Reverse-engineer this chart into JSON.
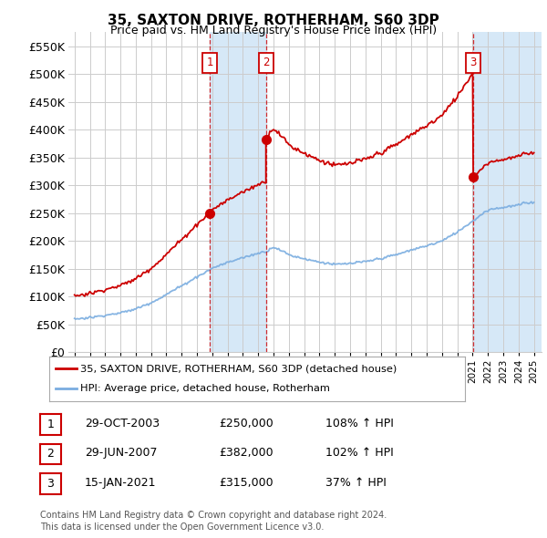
{
  "title": "35, SAXTON DRIVE, ROTHERHAM, S60 3DP",
  "subtitle": "Price paid vs. HM Land Registry's House Price Index (HPI)",
  "red_line_label": "35, SAXTON DRIVE, ROTHERHAM, S60 3DP (detached house)",
  "blue_line_label": "HPI: Average price, detached house, Rotherham",
  "transactions": [
    {
      "num": 1,
      "date": "29-OCT-2003",
      "price": 250000,
      "pct": "108%",
      "dir": "↑"
    },
    {
      "num": 2,
      "date": "29-JUN-2007",
      "price": 382000,
      "pct": "102%",
      "dir": "↑"
    },
    {
      "num": 3,
      "date": "15-JAN-2021",
      "price": 315000,
      "pct": "37%",
      "dir": "↑"
    }
  ],
  "footer1": "Contains HM Land Registry data © Crown copyright and database right 2024.",
  "footer2": "This data is licensed under the Open Government Licence v3.0.",
  "ylim": [
    0,
    575000
  ],
  "yticks": [
    0,
    50000,
    100000,
    150000,
    200000,
    250000,
    300000,
    350000,
    400000,
    450000,
    500000,
    550000
  ],
  "background": "#ffffff",
  "plot_bg": "#ffffff",
  "grid_color": "#cccccc",
  "red_color": "#cc0000",
  "blue_color": "#7aade0",
  "shade_color": "#d6e8f7",
  "vline_color": "#cc0000",
  "sale_dates_year": [
    2003.833,
    2007.5,
    2021.04
  ],
  "sale_prices": [
    250000,
    382000,
    315000
  ],
  "hpi_knots_x": [
    1995,
    1996,
    1997,
    1998,
    1999,
    2000,
    2001,
    2002,
    2003,
    2004,
    2005,
    2006,
    2007,
    2007.5,
    2008,
    2009,
    2010,
    2011,
    2012,
    2013,
    2014,
    2015,
    2016,
    2017,
    2018,
    2019,
    2020,
    2021,
    2022,
    2023,
    2024,
    2025
  ],
  "hpi_knots_y": [
    60000,
    63000,
    67000,
    72000,
    79000,
    90000,
    105000,
    120000,
    135000,
    150000,
    160000,
    168000,
    178000,
    182000,
    190000,
    175000,
    168000,
    162000,
    158000,
    160000,
    163000,
    168000,
    175000,
    183000,
    190000,
    200000,
    215000,
    235000,
    255000,
    260000,
    265000,
    270000
  ]
}
